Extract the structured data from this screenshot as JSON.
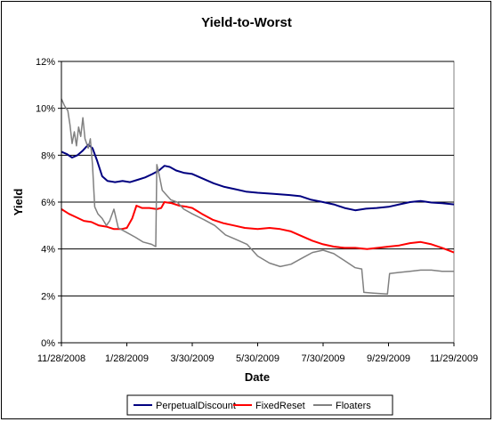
{
  "chart_data": {
    "type": "line",
    "title": "Yield-to-Worst",
    "xlabel": "Date",
    "ylabel": "Yield",
    "x_ticks": [
      "11/28/2008",
      "1/28/2009",
      "3/30/2009",
      "5/30/2009",
      "7/30/2009",
      "9/29/2009",
      "11/29/2009"
    ],
    "y_ticks": [
      "0%",
      "2%",
      "4%",
      "6%",
      "8%",
      "10%",
      "12%"
    ],
    "xlim": [
      "2008-11-28",
      "2009-11-29"
    ],
    "ylim": [
      0,
      12
    ],
    "grid": {
      "horizontal": true,
      "vertical": false
    },
    "legend_position": "bottom",
    "series": [
      {
        "name": "PerpetualDiscount",
        "color": "#000080",
        "points": [
          [
            "2008-11-28",
            8.15
          ],
          [
            "2008-12-03",
            8.05
          ],
          [
            "2008-12-08",
            7.9
          ],
          [
            "2008-12-13",
            8.0
          ],
          [
            "2008-12-18",
            8.2
          ],
          [
            "2008-12-23",
            8.45
          ],
          [
            "2008-12-27",
            8.3
          ],
          [
            "2008-12-31",
            7.8
          ],
          [
            "2009-01-05",
            7.1
          ],
          [
            "2009-01-10",
            6.9
          ],
          [
            "2009-01-17",
            6.85
          ],
          [
            "2009-01-24",
            6.9
          ],
          [
            "2009-01-31",
            6.85
          ],
          [
            "2009-02-07",
            6.95
          ],
          [
            "2009-02-14",
            7.05
          ],
          [
            "2009-02-21",
            7.2
          ],
          [
            "2009-02-27",
            7.35
          ],
          [
            "2009-03-04",
            7.55
          ],
          [
            "2009-03-09",
            7.5
          ],
          [
            "2009-03-15",
            7.35
          ],
          [
            "2009-03-22",
            7.25
          ],
          [
            "2009-03-30",
            7.2
          ],
          [
            "2009-04-09",
            7.0
          ],
          [
            "2009-04-19",
            6.8
          ],
          [
            "2009-04-29",
            6.65
          ],
          [
            "2009-05-09",
            6.55
          ],
          [
            "2009-05-19",
            6.45
          ],
          [
            "2009-05-30",
            6.4
          ],
          [
            "2009-06-14",
            6.35
          ],
          [
            "2009-06-29",
            6.3
          ],
          [
            "2009-07-09",
            6.25
          ],
          [
            "2009-07-19",
            6.1
          ],
          [
            "2009-07-30",
            6.0
          ],
          [
            "2009-08-09",
            5.9
          ],
          [
            "2009-08-19",
            5.75
          ],
          [
            "2009-08-29",
            5.65
          ],
          [
            "2009-09-08",
            5.72
          ],
          [
            "2009-09-18",
            5.75
          ],
          [
            "2009-09-29",
            5.8
          ],
          [
            "2009-10-09",
            5.9
          ],
          [
            "2009-10-19",
            6.0
          ],
          [
            "2009-10-29",
            6.05
          ],
          [
            "2009-11-08",
            5.98
          ],
          [
            "2009-11-18",
            5.95
          ],
          [
            "2009-11-29",
            5.9
          ]
        ]
      },
      {
        "name": "FixedReset",
        "color": "#ff0000",
        "points": [
          [
            "2008-11-28",
            5.7
          ],
          [
            "2008-12-05",
            5.5
          ],
          [
            "2008-12-12",
            5.35
          ],
          [
            "2008-12-19",
            5.2
          ],
          [
            "2008-12-26",
            5.15
          ],
          [
            "2009-01-02",
            5.0
          ],
          [
            "2009-01-09",
            4.95
          ],
          [
            "2009-01-16",
            4.85
          ],
          [
            "2009-01-23",
            4.85
          ],
          [
            "2009-01-28",
            4.9
          ],
          [
            "2009-02-02",
            5.3
          ],
          [
            "2009-02-06",
            5.85
          ],
          [
            "2009-02-11",
            5.75
          ],
          [
            "2009-02-18",
            5.75
          ],
          [
            "2009-02-25",
            5.7
          ],
          [
            "2009-03-01",
            5.75
          ],
          [
            "2009-03-04",
            6.0
          ],
          [
            "2009-03-11",
            5.95
          ],
          [
            "2009-03-18",
            5.85
          ],
          [
            "2009-03-25",
            5.8
          ],
          [
            "2009-03-30",
            5.75
          ],
          [
            "2009-04-08",
            5.5
          ],
          [
            "2009-04-18",
            5.25
          ],
          [
            "2009-04-28",
            5.1
          ],
          [
            "2009-05-08",
            5.0
          ],
          [
            "2009-05-18",
            4.9
          ],
          [
            "2009-05-30",
            4.85
          ],
          [
            "2009-06-10",
            4.9
          ],
          [
            "2009-06-20",
            4.85
          ],
          [
            "2009-06-30",
            4.75
          ],
          [
            "2009-07-10",
            4.55
          ],
          [
            "2009-07-20",
            4.35
          ],
          [
            "2009-07-30",
            4.2
          ],
          [
            "2009-08-09",
            4.1
          ],
          [
            "2009-08-19",
            4.05
          ],
          [
            "2009-08-29",
            4.05
          ],
          [
            "2009-09-09",
            4.0
          ],
          [
            "2009-09-19",
            4.05
          ],
          [
            "2009-09-29",
            4.1
          ],
          [
            "2009-10-09",
            4.15
          ],
          [
            "2009-10-19",
            4.25
          ],
          [
            "2009-10-29",
            4.3
          ],
          [
            "2009-11-08",
            4.2
          ],
          [
            "2009-11-18",
            4.05
          ],
          [
            "2009-11-29",
            3.85
          ]
        ]
      },
      {
        "name": "Floaters",
        "color": "#808080",
        "points": [
          [
            "2008-11-28",
            10.4
          ],
          [
            "2008-12-01",
            10.1
          ],
          [
            "2008-12-04",
            9.9
          ],
          [
            "2008-12-06",
            9.3
          ],
          [
            "2008-12-08",
            8.5
          ],
          [
            "2008-12-10",
            9.0
          ],
          [
            "2008-12-12",
            8.4
          ],
          [
            "2008-12-14",
            9.2
          ],
          [
            "2008-12-16",
            8.8
          ],
          [
            "2008-12-18",
            9.6
          ],
          [
            "2008-12-20",
            8.7
          ],
          [
            "2008-12-23",
            8.3
          ],
          [
            "2008-12-25",
            8.7
          ],
          [
            "2008-12-27",
            7.6
          ],
          [
            "2008-12-29",
            5.8
          ],
          [
            "2009-01-01",
            5.5
          ],
          [
            "2009-01-05",
            5.3
          ],
          [
            "2009-01-09",
            5.0
          ],
          [
            "2009-01-12",
            5.2
          ],
          [
            "2009-01-16",
            5.7
          ],
          [
            "2009-01-20",
            4.9
          ],
          [
            "2009-01-28",
            4.7
          ],
          [
            "2009-02-05",
            4.5
          ],
          [
            "2009-02-12",
            4.3
          ],
          [
            "2009-02-20",
            4.2
          ],
          [
            "2009-02-24",
            4.1
          ],
          [
            "2009-02-25",
            7.6
          ],
          [
            "2009-02-27",
            7.2
          ],
          [
            "2009-03-02",
            6.5
          ],
          [
            "2009-03-06",
            6.3
          ],
          [
            "2009-03-10",
            6.1
          ],
          [
            "2009-03-16",
            6.0
          ],
          [
            "2009-03-22",
            5.7
          ],
          [
            "2009-03-30",
            5.5
          ],
          [
            "2009-04-10",
            5.25
          ],
          [
            "2009-04-20",
            5.0
          ],
          [
            "2009-04-30",
            4.6
          ],
          [
            "2009-05-10",
            4.4
          ],
          [
            "2009-05-20",
            4.2
          ],
          [
            "2009-05-30",
            3.7
          ],
          [
            "2009-06-10",
            3.4
          ],
          [
            "2009-06-20",
            3.25
          ],
          [
            "2009-06-30",
            3.35
          ],
          [
            "2009-07-10",
            3.6
          ],
          [
            "2009-07-20",
            3.85
          ],
          [
            "2009-07-30",
            3.95
          ],
          [
            "2009-08-09",
            3.8
          ],
          [
            "2009-08-19",
            3.5
          ],
          [
            "2009-08-29",
            3.2
          ],
          [
            "2009-09-04",
            3.15
          ],
          [
            "2009-09-06",
            2.15
          ],
          [
            "2009-09-15",
            2.12
          ],
          [
            "2009-09-28",
            2.08
          ],
          [
            "2009-09-30",
            2.95
          ],
          [
            "2009-10-09",
            3.0
          ],
          [
            "2009-10-19",
            3.05
          ],
          [
            "2009-10-29",
            3.1
          ],
          [
            "2009-11-08",
            3.1
          ],
          [
            "2009-11-18",
            3.05
          ],
          [
            "2009-11-29",
            3.05
          ]
        ]
      }
    ]
  }
}
